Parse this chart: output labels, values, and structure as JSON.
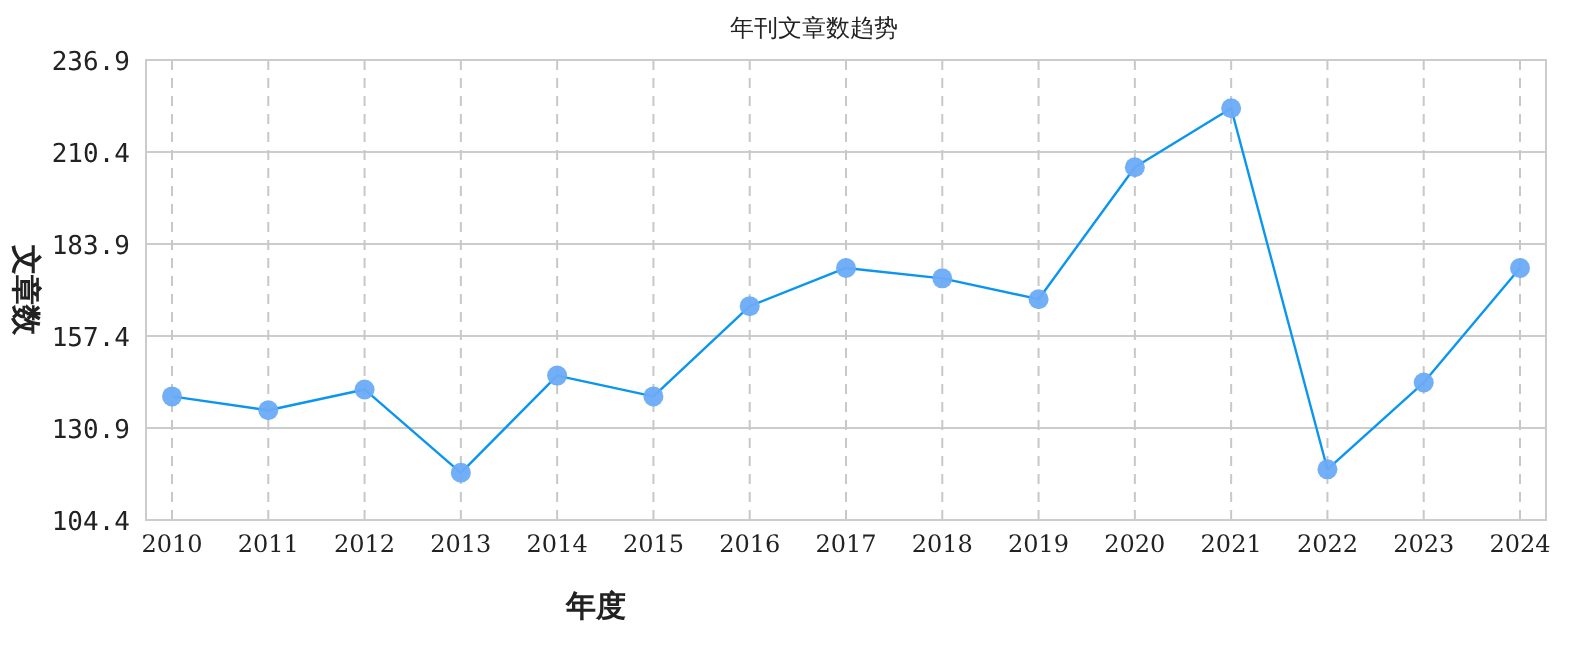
{
  "chart_data": {
    "type": "line",
    "title": "年刊文章数趋势",
    "xlabel": "年度",
    "ylabel": "文章数",
    "categories": [
      "2010",
      "2011",
      "2012",
      "2013",
      "2014",
      "2015",
      "2016",
      "2017",
      "2018",
      "2019",
      "2020",
      "2021",
      "2022",
      "2023",
      "2024"
    ],
    "series": [
      {
        "color": "#0a96f0",
        "values": [
          140,
          136,
          142,
          118,
          146,
          140,
          166,
          177,
          174,
          168,
          206,
          223,
          119,
          144,
          177
        ]
      }
    ],
    "ylim": [
      104.4,
      236.9
    ],
    "yticks": [
      104.4,
      130.9,
      157.4,
      183.9,
      210.4,
      236.9
    ],
    "grid": true,
    "marker": "circle",
    "line_style": "solid"
  }
}
